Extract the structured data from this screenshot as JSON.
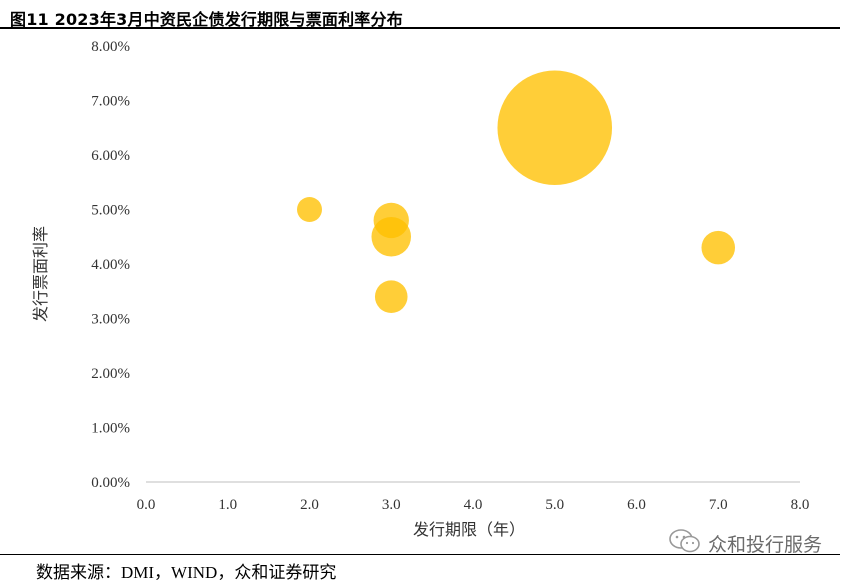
{
  "figure": {
    "title": "图11 2023年3月中资民企债发行期限与票面利率分布",
    "source": "数据来源：DMI，WIND，众和证券研究"
  },
  "watermark": {
    "text": "众和投行服务",
    "icon": "wechat-icon"
  },
  "chart_data": {
    "type": "scatter",
    "subtype": "bubble",
    "xlabel": "发行期限（年）",
    "ylabel": "发行票面利率",
    "xlim": [
      0,
      8
    ],
    "ylim": [
      0,
      0.08
    ],
    "x_ticks": [
      0,
      1,
      2,
      3,
      4,
      5,
      6,
      7,
      8
    ],
    "x_tick_labels": [
      "0.0",
      "1.0",
      "2.0",
      "3.0",
      "4.0",
      "5.0",
      "6.0",
      "7.0",
      "8.0"
    ],
    "y_ticks": [
      0,
      0.01,
      0.02,
      0.03,
      0.04,
      0.05,
      0.06,
      0.07,
      0.08
    ],
    "y_tick_labels": [
      "0.00%",
      "1.00%",
      "2.00%",
      "3.00%",
      "4.00%",
      "5.00%",
      "6.00%",
      "7.00%",
      "8.00%"
    ],
    "grid": false,
    "legend": "none",
    "bubble_color": "#FFC000",
    "points": [
      {
        "x": 2.0,
        "y": 0.05,
        "size": 1
      },
      {
        "x": 3.0,
        "y": 0.048,
        "size": 2
      },
      {
        "x": 3.0,
        "y": 0.045,
        "size": 2.5
      },
      {
        "x": 3.0,
        "y": 0.034,
        "size": 1.7
      },
      {
        "x": 5.0,
        "y": 0.065,
        "size": 21
      },
      {
        "x": 7.0,
        "y": 0.043,
        "size": 1.8
      }
    ]
  }
}
